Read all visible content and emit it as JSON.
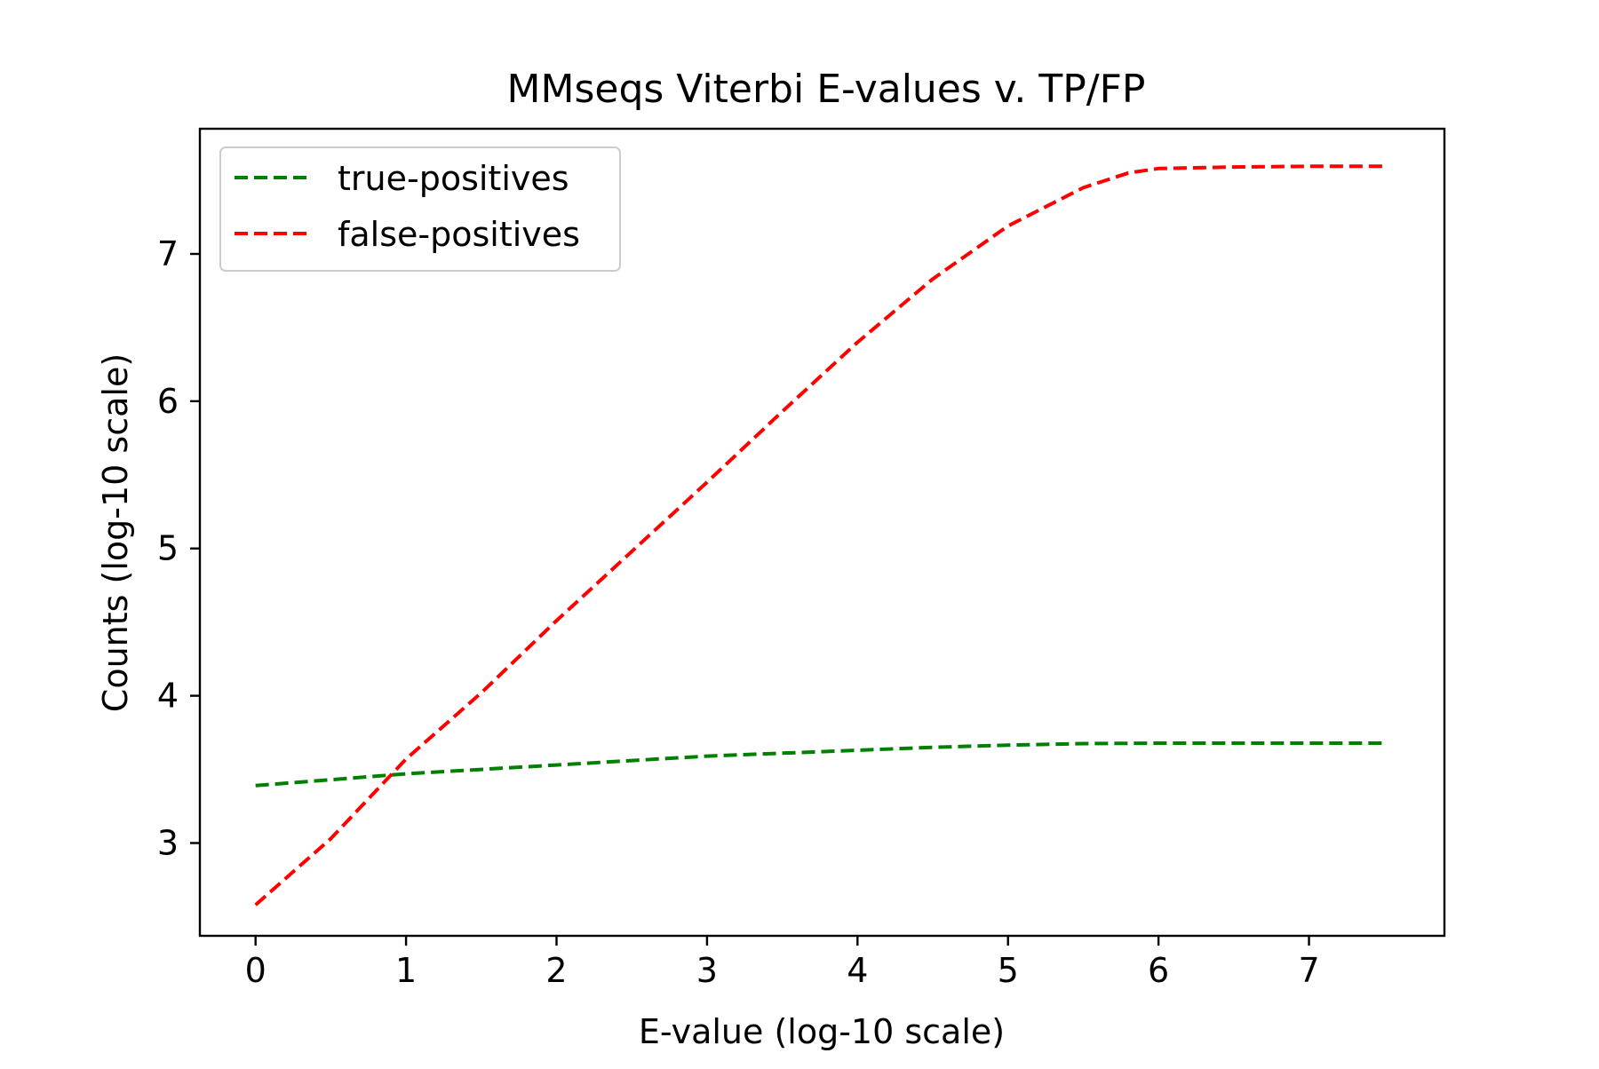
{
  "chart_data": {
    "type": "line",
    "title": "MMseqs Viterbi E-values v. TP/FP",
    "xlabel": "E-value (log-10 scale)",
    "ylabel": "Counts (log-10 scale)",
    "xlim": [
      -0.37,
      7.9
    ],
    "ylim": [
      2.37,
      7.85
    ],
    "xticks": [
      "0",
      "1",
      "2",
      "3",
      "4",
      "5",
      "6",
      "7"
    ],
    "yticks": [
      "3",
      "4",
      "5",
      "6",
      "7"
    ],
    "grid": false,
    "legend_position": "upper-left",
    "series": [
      {
        "name": "true-positives",
        "color": "#008000",
        "style": "dashed",
        "x": [
          0,
          0.5,
          1,
          1.5,
          2,
          2.5,
          3,
          3.5,
          4,
          4.5,
          5,
          5.5,
          6,
          6.5,
          7,
          7.5
        ],
        "y": [
          3.39,
          3.43,
          3.47,
          3.5,
          3.53,
          3.56,
          3.59,
          3.61,
          3.63,
          3.65,
          3.665,
          3.675,
          3.678,
          3.678,
          3.678,
          3.678
        ]
      },
      {
        "name": "false-positives",
        "color": "#ff0000",
        "style": "dashed",
        "x": [
          0,
          0.5,
          1,
          1.5,
          2,
          2.5,
          3,
          3.5,
          4,
          4.5,
          5,
          5.5,
          5.8,
          6,
          6.5,
          7,
          7.5
        ],
        "y": [
          2.58,
          3.03,
          3.57,
          4.02,
          4.51,
          4.98,
          5.45,
          5.93,
          6.4,
          6.83,
          7.19,
          7.45,
          7.55,
          7.58,
          7.59,
          7.595,
          7.595
        ]
      }
    ]
  }
}
